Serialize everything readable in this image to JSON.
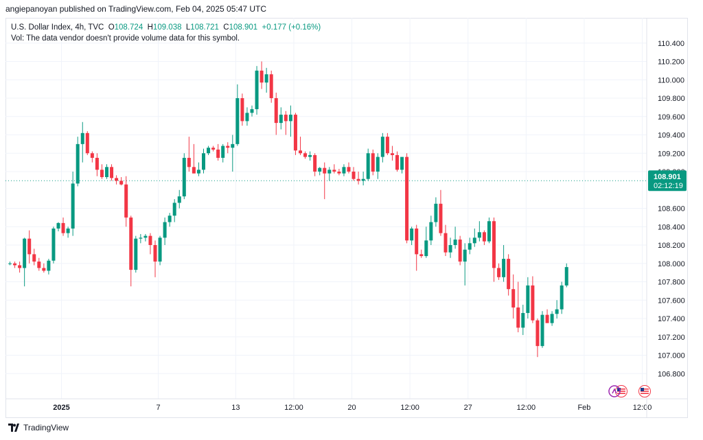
{
  "header": {
    "attribution": "angiepanoyan published on TradingView.com, Feb 04, 2025 05:47 UTC"
  },
  "legend": {
    "symbol": "U.S. Dollar Index, 4h, TVC",
    "open_label": "O",
    "open": "108.724",
    "high_label": "H",
    "high": "109.038",
    "low_label": "L",
    "low": "108.721",
    "close_label": "C",
    "close": "108.901",
    "change": "+0.177 (+0.16%)",
    "vol_note": "Vol: The data vendor doesn't provide volume data for this symbol."
  },
  "price_badge": {
    "price": "108.901",
    "countdown": "02:12:19"
  },
  "footer": {
    "brand": "TradingView"
  },
  "colors": {
    "up": "#089981",
    "down": "#f23645",
    "grid": "#f0f3fa",
    "badge": "#089981",
    "text": "#131722"
  },
  "icons": [
    "tradingview-logo-icon",
    "us-flag-icon",
    "us-flag-icon"
  ],
  "chart_data": {
    "type": "candlestick",
    "ylim": [
      106.6,
      110.6
    ],
    "y_ticks": [
      "110.400",
      "110.200",
      "110.000",
      "109.800",
      "109.600",
      "109.400",
      "109.200",
      "109.000",
      "108.600",
      "108.400",
      "108.200",
      "108.000",
      "107.800",
      "107.600",
      "107.400",
      "107.200",
      "107.000",
      "106.800"
    ],
    "x_ticks": [
      {
        "label": "2025",
        "index": 11,
        "bold": true
      },
      {
        "label": "7",
        "index": 31
      },
      {
        "label": "13",
        "index": 47
      },
      {
        "label": "12:00",
        "index": 59
      },
      {
        "label": "20",
        "index": 71
      },
      {
        "label": "12:00",
        "index": 83
      },
      {
        "label": "27",
        "index": 95
      },
      {
        "label": "12:00",
        "index": 107
      },
      {
        "label": "Feb",
        "index": 119
      },
      {
        "label": "12:00",
        "index": 131
      }
    ],
    "last_price": 108.901,
    "candles": [
      [
        108.0,
        108.02,
        107.98,
        108.0
      ],
      [
        108.0,
        108.02,
        107.95,
        107.98
      ],
      [
        107.98,
        108.02,
        107.9,
        107.95
      ],
      [
        107.95,
        108.28,
        107.75,
        108.27
      ],
      [
        108.27,
        108.36,
        108.0,
        108.1
      ],
      [
        108.1,
        108.16,
        107.98,
        108.02
      ],
      [
        108.02,
        108.06,
        107.92,
        107.95
      ],
      [
        107.95,
        108.0,
        107.9,
        107.92
      ],
      [
        107.92,
        108.05,
        107.88,
        108.03
      ],
      [
        108.03,
        108.4,
        108.0,
        108.38
      ],
      [
        108.38,
        108.45,
        108.35,
        108.44
      ],
      [
        108.44,
        108.5,
        108.3,
        108.33
      ],
      [
        108.33,
        108.4,
        108.28,
        108.38
      ],
      [
        108.38,
        109.0,
        108.3,
        108.87
      ],
      [
        108.87,
        109.38,
        108.84,
        109.3
      ],
      [
        109.3,
        109.54,
        109.1,
        109.42
      ],
      [
        109.42,
        109.44,
        109.18,
        109.2
      ],
      [
        109.2,
        109.22,
        109.1,
        109.15
      ],
      [
        109.15,
        109.2,
        108.95,
        109.02
      ],
      [
        109.02,
        109.08,
        108.92,
        108.94
      ],
      [
        108.94,
        109.08,
        108.92,
        109.05
      ],
      [
        109.05,
        109.08,
        108.9,
        108.93
      ],
      [
        108.93,
        108.96,
        108.86,
        108.9
      ],
      [
        108.9,
        108.94,
        108.85,
        108.86
      ],
      [
        108.86,
        108.95,
        108.4,
        108.5
      ],
      [
        108.5,
        108.52,
        107.75,
        107.93
      ],
      [
        107.93,
        108.3,
        107.9,
        108.27
      ],
      [
        108.27,
        108.32,
        108.22,
        108.28
      ],
      [
        108.28,
        108.32,
        108.24,
        108.3
      ],
      [
        108.3,
        108.33,
        108.1,
        108.2
      ],
      [
        108.2,
        108.25,
        107.85,
        108.02
      ],
      [
        108.02,
        108.3,
        107.98,
        108.28
      ],
      [
        108.28,
        108.5,
        108.2,
        108.45
      ],
      [
        108.45,
        108.55,
        108.4,
        108.52
      ],
      [
        108.52,
        108.7,
        108.45,
        108.66
      ],
      [
        108.66,
        108.8,
        108.6,
        108.73
      ],
      [
        108.73,
        109.2,
        108.7,
        109.15
      ],
      [
        109.15,
        109.38,
        109.0,
        109.05
      ],
      [
        109.05,
        109.3,
        108.98,
        108.98
      ],
      [
        108.98,
        109.1,
        108.95,
        109.02
      ],
      [
        109.02,
        109.25,
        108.98,
        109.2
      ],
      [
        109.2,
        109.28,
        109.18,
        109.26
      ],
      [
        109.26,
        109.28,
        109.22,
        109.24
      ],
      [
        109.24,
        109.3,
        109.12,
        109.15
      ],
      [
        109.15,
        109.3,
        109.1,
        109.28
      ],
      [
        109.28,
        109.32,
        109.2,
        109.26
      ],
      [
        109.26,
        109.4,
        109.0,
        109.3
      ],
      [
        109.3,
        109.95,
        109.28,
        109.8
      ],
      [
        109.8,
        109.85,
        109.5,
        109.55
      ],
      [
        109.55,
        109.7,
        109.5,
        109.64
      ],
      [
        109.64,
        109.72,
        109.6,
        109.68
      ],
      [
        109.68,
        110.15,
        109.62,
        110.1
      ],
      [
        110.1,
        110.2,
        109.9,
        109.97
      ],
      [
        109.97,
        110.13,
        109.86,
        110.06
      ],
      [
        110.06,
        110.1,
        109.75,
        109.8
      ],
      [
        109.8,
        109.86,
        109.4,
        109.53
      ],
      [
        109.53,
        109.7,
        109.46,
        109.62
      ],
      [
        109.62,
        109.66,
        109.4,
        109.55
      ],
      [
        109.55,
        109.72,
        109.38,
        109.62
      ],
      [
        109.62,
        109.64,
        109.18,
        109.23
      ],
      [
        109.23,
        109.38,
        109.18,
        109.2
      ],
      [
        109.2,
        109.22,
        109.14,
        109.16
      ],
      [
        109.16,
        109.22,
        109.12,
        109.18
      ],
      [
        109.18,
        109.2,
        108.95,
        109.0
      ],
      [
        109.0,
        109.05,
        108.96,
        109.04
      ],
      [
        109.04,
        109.1,
        108.7,
        108.98
      ],
      [
        108.98,
        109.05,
        108.9,
        109.02
      ],
      [
        109.02,
        109.08,
        108.98,
        109.0
      ],
      [
        109.0,
        109.03,
        108.96,
        108.98
      ],
      [
        108.98,
        109.08,
        108.95,
        109.05
      ],
      [
        109.05,
        109.1,
        108.98,
        109.0
      ],
      [
        109.0,
        109.05,
        108.9,
        108.92
      ],
      [
        108.92,
        109.0,
        108.86,
        108.9
      ],
      [
        108.9,
        109.0,
        108.85,
        108.92
      ],
      [
        108.92,
        109.25,
        108.9,
        109.2
      ],
      [
        109.2,
        109.24,
        108.96,
        109.0
      ],
      [
        109.0,
        109.2,
        108.92,
        109.16
      ],
      [
        109.16,
        109.42,
        109.1,
        109.38
      ],
      [
        109.38,
        109.42,
        109.18,
        109.2
      ],
      [
        109.2,
        109.28,
        109.12,
        109.18
      ],
      [
        109.18,
        109.22,
        109.0,
        109.02
      ],
      [
        109.02,
        109.12,
        108.98,
        109.16
      ],
      [
        109.16,
        109.2,
        108.22,
        108.25
      ],
      [
        108.25,
        108.4,
        108.2,
        108.38
      ],
      [
        108.38,
        108.42,
        107.92,
        108.1
      ],
      [
        108.1,
        108.15,
        108.06,
        108.08
      ],
      [
        108.08,
        108.4,
        108.06,
        108.25
      ],
      [
        108.25,
        108.52,
        108.2,
        108.45
      ],
      [
        108.45,
        108.72,
        108.4,
        108.65
      ],
      [
        108.65,
        108.8,
        108.3,
        108.33
      ],
      [
        108.33,
        108.42,
        108.08,
        108.12
      ],
      [
        108.12,
        108.28,
        108.06,
        108.2
      ],
      [
        108.2,
        108.4,
        108.16,
        108.26
      ],
      [
        108.26,
        108.3,
        107.98,
        108.02
      ],
      [
        108.02,
        108.22,
        107.76,
        108.15
      ],
      [
        108.15,
        108.28,
        108.1,
        108.22
      ],
      [
        108.22,
        108.38,
        108.18,
        108.28
      ],
      [
        108.28,
        108.46,
        108.24,
        108.34
      ],
      [
        108.34,
        108.36,
        108.2,
        108.24
      ],
      [
        108.24,
        108.5,
        108.22,
        108.46
      ],
      [
        108.46,
        108.5,
        107.8,
        107.95
      ],
      [
        107.95,
        108.0,
        107.82,
        107.85
      ],
      [
        107.85,
        108.2,
        107.8,
        108.05
      ],
      [
        108.05,
        108.1,
        107.65,
        107.72
      ],
      [
        107.72,
        107.88,
        107.4,
        107.52
      ],
      [
        107.52,
        107.8,
        107.25,
        107.3
      ],
      [
        107.3,
        107.55,
        107.22,
        107.46
      ],
      [
        107.46,
        107.85,
        107.4,
        107.76
      ],
      [
        107.76,
        107.86,
        107.35,
        107.38
      ],
      [
        107.38,
        107.4,
        106.98,
        107.1
      ],
      [
        107.1,
        107.48,
        107.08,
        107.44
      ],
      [
        107.44,
        107.5,
        107.38,
        107.35
      ],
      [
        107.35,
        107.48,
        107.32,
        107.45
      ],
      [
        107.45,
        107.6,
        107.4,
        107.5
      ],
      [
        107.5,
        107.8,
        107.45,
        107.76
      ],
      [
        107.76,
        108.0,
        107.74,
        107.96
      ]
    ]
  }
}
